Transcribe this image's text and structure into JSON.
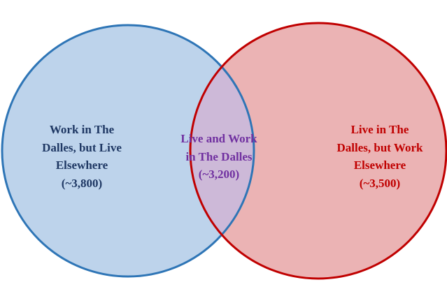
{
  "nodes": [
    {
      "lines": [
        "Work in The",
        "Dalles, but Live",
        "Elsewhere",
        "(~3,800)"
      ]
    },
    {
      "lines": [
        "Live and Work",
        "in The Dalles",
        "(~3,200)"
      ]
    },
    {
      "lines": [
        "Live in The",
        "Dalles, but Work",
        "Elsewhere",
        "(~3,500)"
      ]
    }
  ]
}
